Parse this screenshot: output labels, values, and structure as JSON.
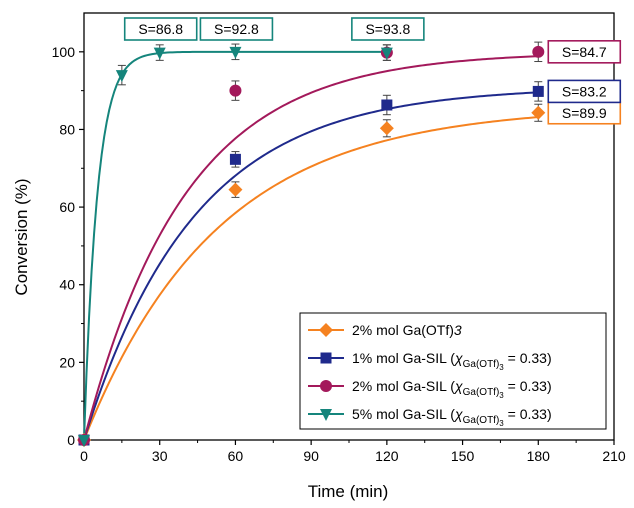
{
  "chart_data": {
    "type": "scatter",
    "xlabel": "Time (min)",
    "ylabel": "Conversion (%)",
    "xlim": [
      0,
      210
    ],
    "ylim": [
      0,
      110
    ],
    "x_ticks": [
      0,
      30,
      60,
      90,
      120,
      150,
      180,
      210
    ],
    "y_ticks": [
      0,
      20,
      40,
      60,
      80,
      100
    ],
    "grid": false,
    "legend_position": "bottom-right",
    "series": [
      {
        "name_parts": [
          "2% mol Ga(OTf)",
          "3",
          "",
          "",
          ""
        ],
        "color": "#F58220",
        "marker": "diamond",
        "points": [
          {
            "x": 0,
            "y": 0,
            "err": 0
          },
          {
            "x": 60,
            "y": 64.5,
            "err": 2.0
          },
          {
            "x": 120,
            "y": 80.3,
            "err": 2.2
          },
          {
            "x": 180,
            "y": 84.3,
            "err": 2.2
          }
        ],
        "fit": {
          "a": 86,
          "k": 0.019
        },
        "annotations": [
          {
            "x": 180,
            "text": "S=89.9"
          }
        ]
      },
      {
        "name_parts": [
          "1% mol Ga-SIL (",
          "χ",
          "Ga(OTf)",
          "3",
          " = 0.33)"
        ],
        "color": "#1F2A8C",
        "marker": "square",
        "points": [
          {
            "x": 0,
            "y": 0,
            "err": 0
          },
          {
            "x": 60,
            "y": 72.3,
            "err": 2.0
          },
          {
            "x": 120,
            "y": 86.3,
            "err": 2.5
          },
          {
            "x": 180,
            "y": 89.8,
            "err": 2.5
          }
        ],
        "fit": {
          "a": 91,
          "k": 0.023
        },
        "annotations": [
          {
            "x": 180,
            "text": "S=83.2"
          }
        ]
      },
      {
        "name_parts": [
          "2% mol Ga-SIL (",
          "χ",
          "Ga(OTf)",
          "3",
          " = 0.33)"
        ],
        "color": "#A3195B",
        "marker": "circle",
        "points": [
          {
            "x": 0,
            "y": 0,
            "err": 0
          },
          {
            "x": 60,
            "y": 90.0,
            "err": 2.5
          },
          {
            "x": 120,
            "y": 99.8,
            "err": 2.0
          },
          {
            "x": 180,
            "y": 100.0,
            "err": 2.5
          }
        ],
        "fit": {
          "a": 100,
          "k": 0.025
        },
        "annotations": [
          {
            "x": 180,
            "text": "S=84.7"
          }
        ]
      },
      {
        "name_parts": [
          "5% mol Ga-SIL (",
          "χ",
          "Ga(OTf)",
          "3",
          " = 0.33)"
        ],
        "color": "#15857C",
        "marker": "triangle-down",
        "points": [
          {
            "x": 0,
            "y": 0,
            "err": 0
          },
          {
            "x": 15,
            "y": 94.0,
            "err": 2.5
          },
          {
            "x": 30,
            "y": 99.8,
            "err": 2.0
          },
          {
            "x": 60,
            "y": 100.0,
            "err": 2.0
          },
          {
            "x": 120,
            "y": 99.8,
            "err": 2.0
          }
        ],
        "fit": {
          "a": 100,
          "k": 0.19
        },
        "annotations": [
          {
            "x": 30,
            "text": "S=86.8"
          },
          {
            "x": 60,
            "text": "S=92.8"
          },
          {
            "x": 120,
            "text": "S=93.8"
          }
        ]
      }
    ]
  }
}
